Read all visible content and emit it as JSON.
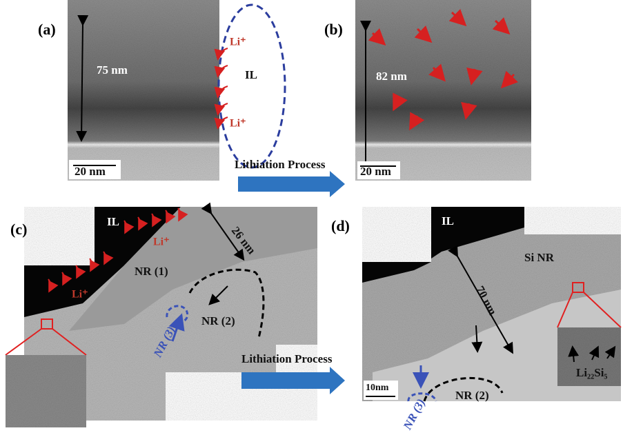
{
  "panels": [
    {
      "label": "(a)",
      "scale_bar": "20 nm",
      "annotations": [
        "75 nm",
        "Li⁺",
        "IL",
        "Li⁺"
      ]
    },
    {
      "label": "(b)",
      "scale_bar": "20 nm",
      "annotations": [
        "82 nm"
      ]
    },
    {
      "label": "(c)",
      "annotations": [
        "IL",
        "26 nm",
        "Li⁺",
        "Li⁺",
        "NR (1)",
        "NR (2)",
        "NR (3)"
      ]
    },
    {
      "label": "(d)",
      "scale_bar": "10nm",
      "annotations": [
        "IL",
        "Si NR",
        "70 nm",
        "Li₂₂Si₅",
        "NR (2)",
        "NR (3)"
      ]
    }
  ],
  "arrows": [
    "Lithiation Process",
    "Lithiation Process"
  ]
}
